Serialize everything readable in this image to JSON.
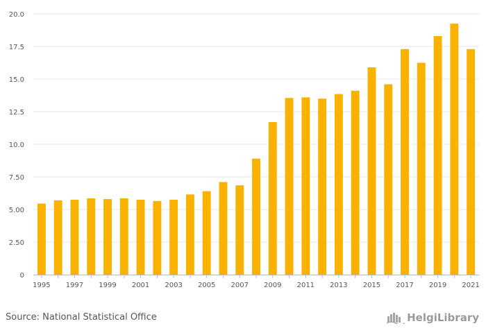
{
  "chart_data": {
    "type": "bar",
    "title": "",
    "xlabel": "",
    "ylabel": "",
    "categories": [
      "1995",
      "1996",
      "1997",
      "1998",
      "1999",
      "2000",
      "2001",
      "2002",
      "2003",
      "2004",
      "2005",
      "2006",
      "2007",
      "2008",
      "2009",
      "2010",
      "2011",
      "2012",
      "2013",
      "2014",
      "2015",
      "2016",
      "2017",
      "2018",
      "2019",
      "2020",
      "2021"
    ],
    "values": [
      5.45,
      5.7,
      5.75,
      5.85,
      5.8,
      5.85,
      5.75,
      5.65,
      5.75,
      6.15,
      6.4,
      7.1,
      6.85,
      8.9,
      11.7,
      13.55,
      13.6,
      13.5,
      13.85,
      14.1,
      15.9,
      14.6,
      17.3,
      16.25,
      18.3,
      19.25,
      17.3
    ],
    "x_tick_labels": [
      "1995",
      "1997",
      "1999",
      "2001",
      "2003",
      "2005",
      "2007",
      "2009",
      "2011",
      "2013",
      "2015",
      "2017",
      "2019",
      "2021"
    ],
    "y_ticks": [
      0,
      2.5,
      5,
      7.5,
      10,
      12.5,
      15,
      17.5,
      20
    ],
    "y_tick_labels": [
      "0",
      "2.50",
      "5.00",
      "7.50",
      "10.0",
      "12.5",
      "15.0",
      "17.5",
      "20.0"
    ],
    "ylim": [
      0,
      20
    ],
    "grid": true,
    "bar_color": "#F9B200",
    "grid_color": "#E5E5E5",
    "axis_color": "#BBBBBB"
  },
  "footer": {
    "source": "Source: National Statistical Office",
    "brand": "HelgiLibrary",
    "brand_icon": "helgi-logo-icon"
  }
}
